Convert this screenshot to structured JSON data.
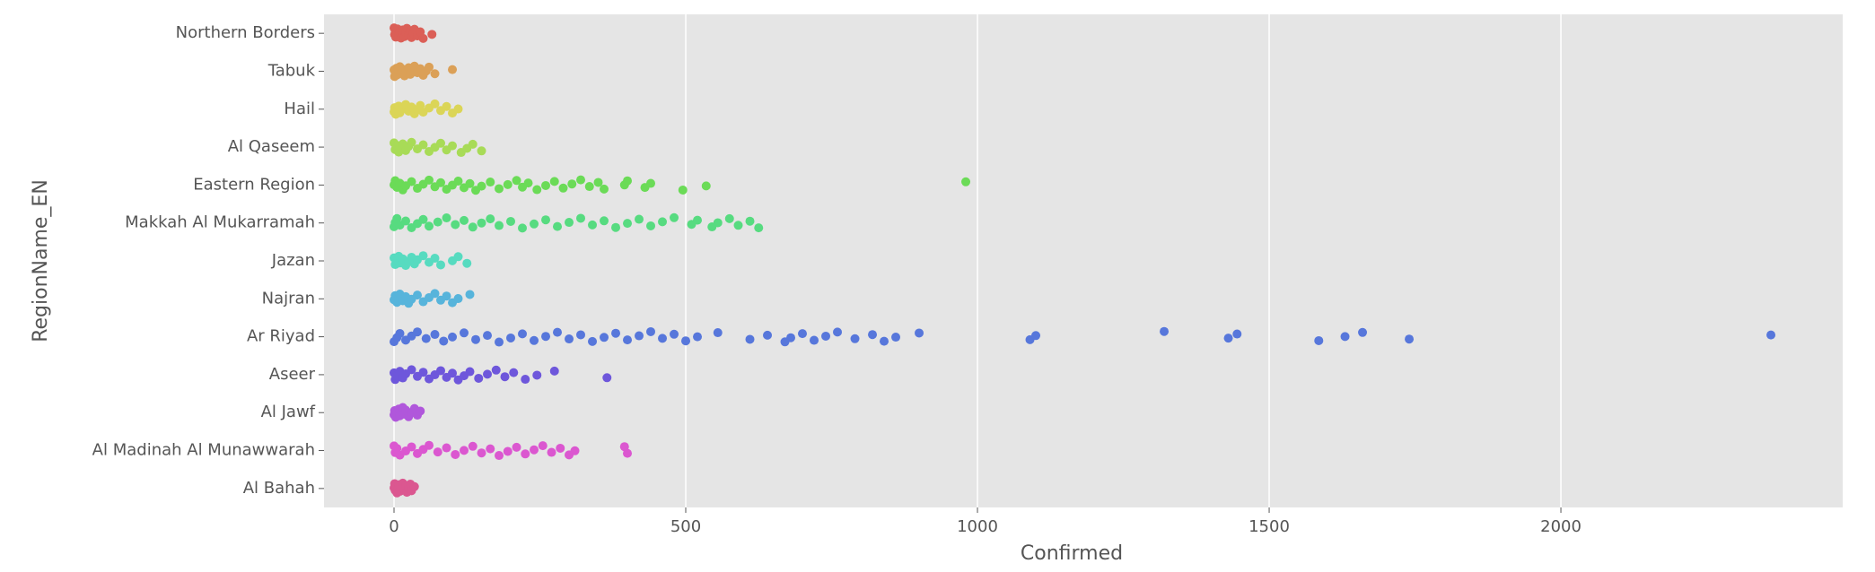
{
  "chart_data": {
    "type": "strip",
    "xlabel": "Confirmed",
    "ylabel": "RegionName_EN",
    "categories": [
      "Northern Borders",
      "Tabuk",
      "Hail",
      "Al Qaseem",
      "Eastern Region",
      "Makkah Al Mukarramah",
      "Jazan",
      "Najran",
      "Ar Riyad",
      "Aseer",
      "Al Jawf",
      "Al Madinah Al Munawwarah",
      "Al Bahah"
    ],
    "colors": [
      "#db5f57",
      "#dba057",
      "#dbd557",
      "#a8db57",
      "#6bdb57",
      "#57db80",
      "#57dbc0",
      "#57b4db",
      "#5777db",
      "#6e57db",
      "#b057db",
      "#db57d0",
      "#db5790"
    ],
    "values": [
      [
        0,
        1,
        2,
        3,
        5,
        6,
        8,
        10,
        12,
        14,
        15,
        18,
        20,
        22,
        25,
        28,
        30,
        33,
        35,
        40,
        45,
        50,
        65
      ],
      [
        0,
        1,
        2,
        4,
        5,
        8,
        10,
        12,
        15,
        18,
        20,
        25,
        28,
        30,
        35,
        40,
        45,
        50,
        55,
        60,
        70,
        100
      ],
      [
        0,
        1,
        3,
        5,
        8,
        10,
        15,
        20,
        25,
        30,
        35,
        40,
        45,
        50,
        60,
        70,
        80,
        90,
        100,
        110
      ],
      [
        0,
        2,
        5,
        8,
        10,
        15,
        20,
        25,
        30,
        40,
        50,
        60,
        70,
        80,
        90,
        100,
        115,
        125,
        135,
        150
      ],
      [
        0,
        2,
        5,
        10,
        15,
        20,
        30,
        40,
        50,
        60,
        70,
        80,
        90,
        100,
        110,
        120,
        130,
        140,
        150,
        165,
        180,
        195,
        210,
        220,
        230,
        245,
        260,
        275,
        290,
        305,
        320,
        335,
        350,
        360,
        395,
        400,
        430,
        440,
        495,
        535,
        980
      ],
      [
        0,
        2,
        5,
        10,
        20,
        30,
        40,
        50,
        60,
        75,
        90,
        105,
        120,
        135,
        150,
        165,
        180,
        200,
        220,
        240,
        260,
        280,
        300,
        320,
        340,
        360,
        380,
        400,
        420,
        440,
        460,
        480,
        510,
        520,
        545,
        555,
        575,
        590,
        610,
        625
      ],
      [
        0,
        2,
        5,
        8,
        10,
        15,
        20,
        25,
        30,
        35,
        40,
        50,
        60,
        70,
        80,
        100,
        110,
        125
      ],
      [
        0,
        2,
        5,
        8,
        10,
        15,
        20,
        25,
        30,
        40,
        50,
        60,
        70,
        80,
        90,
        100,
        110,
        130
      ],
      [
        0,
        5,
        10,
        20,
        30,
        40,
        55,
        70,
        85,
        100,
        120,
        140,
        160,
        180,
        200,
        220,
        240,
        260,
        280,
        300,
        320,
        340,
        360,
        380,
        400,
        420,
        440,
        460,
        480,
        500,
        520,
        555,
        610,
        640,
        670,
        680,
        700,
        720,
        740,
        760,
        790,
        820,
        840,
        860,
        900,
        1090,
        1100,
        1320,
        1430,
        1445,
        1585,
        1630,
        1660,
        1740,
        2360
      ],
      [
        0,
        2,
        5,
        10,
        15,
        20,
        30,
        40,
        50,
        60,
        70,
        80,
        90,
        100,
        110,
        120,
        130,
        145,
        160,
        175,
        190,
        205,
        225,
        245,
        275,
        365
      ],
      [
        0,
        1,
        3,
        5,
        8,
        10,
        12,
        15,
        18,
        20,
        25,
        30,
        35,
        40,
        45
      ],
      [
        0,
        2,
        5,
        10,
        20,
        30,
        40,
        50,
        60,
        75,
        90,
        105,
        120,
        135,
        150,
        165,
        180,
        195,
        210,
        225,
        240,
        255,
        270,
        285,
        300,
        310,
        395,
        400
      ],
      [
        0,
        1,
        2,
        3,
        5,
        6,
        8,
        10,
        12,
        15,
        18,
        20,
        22,
        25,
        28,
        30,
        35
      ]
    ],
    "xlim": [
      -120,
      2483
    ],
    "xticks": [
      0,
      500,
      1000,
      1500,
      2000
    ],
    "grid": true
  }
}
